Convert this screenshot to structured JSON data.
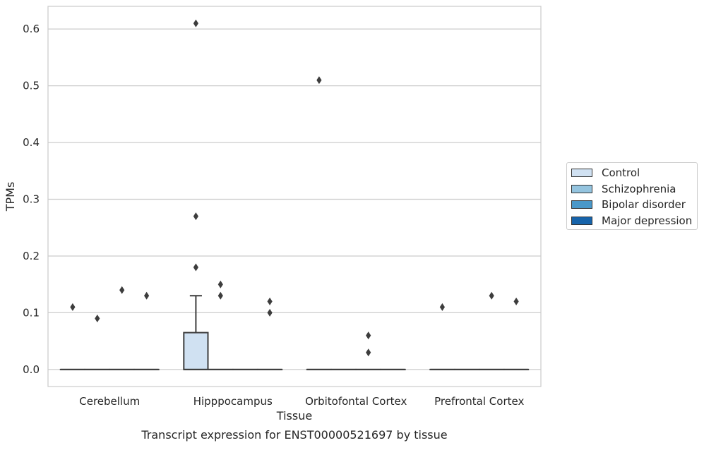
{
  "chart_data": {
    "type": "box",
    "title": "Transcript expression for ENST00000521697 by tissue",
    "xlabel": "Tissue",
    "ylabel": "TPMs",
    "ylim": [
      -0.03,
      0.64
    ],
    "yticks": [
      0.0,
      0.1,
      0.2,
      0.3,
      0.4,
      0.5,
      0.6
    ],
    "ytick_labels": [
      "0.0",
      "0.1",
      "0.2",
      "0.3",
      "0.4",
      "0.5",
      "0.6"
    ],
    "grid": "horizontal",
    "legend_position": "right",
    "categories": [
      "Cerebellum",
      "Hipppocampus",
      "Orbitofontal Cortex",
      "Prefrontal Cortex"
    ],
    "series": [
      {
        "name": "Control",
        "color": "#d0e1f2",
        "boxes": [
          {
            "q1": 0.0,
            "median": 0.0,
            "q3": 0.0,
            "whisker_low": 0.0,
            "whisker_high": 0.0,
            "outliers": [
              0.11
            ]
          },
          {
            "q1": 0.0,
            "median": 0.0,
            "q3": 0.065,
            "whisker_low": 0.0,
            "whisker_high": 0.13,
            "outliers": [
              0.61,
              0.27,
              0.18
            ]
          },
          {
            "q1": 0.0,
            "median": 0.0,
            "q3": 0.0,
            "whisker_low": 0.0,
            "whisker_high": 0.0,
            "outliers": [
              0.51
            ]
          },
          {
            "q1": 0.0,
            "median": 0.0,
            "q3": 0.0,
            "whisker_low": 0.0,
            "whisker_high": 0.0,
            "outliers": [
              0.11
            ]
          }
        ]
      },
      {
        "name": "Schizophrenia",
        "color": "#94c4df",
        "boxes": [
          {
            "q1": 0.0,
            "median": 0.0,
            "q3": 0.0,
            "whisker_low": 0.0,
            "whisker_high": 0.0,
            "outliers": [
              0.09
            ]
          },
          {
            "q1": 0.0,
            "median": 0.0,
            "q3": 0.0,
            "whisker_low": 0.0,
            "whisker_high": 0.0,
            "outliers": [
              0.15,
              0.13
            ]
          },
          {
            "q1": 0.0,
            "median": 0.0,
            "q3": 0.0,
            "whisker_low": 0.0,
            "whisker_high": 0.0,
            "outliers": []
          },
          {
            "q1": 0.0,
            "median": 0.0,
            "q3": 0.0,
            "whisker_low": 0.0,
            "whisker_high": 0.0,
            "outliers": []
          }
        ]
      },
      {
        "name": "Bipolar disorder",
        "color": "#4a98c9",
        "boxes": [
          {
            "q1": 0.0,
            "median": 0.0,
            "q3": 0.0,
            "whisker_low": 0.0,
            "whisker_high": 0.0,
            "outliers": [
              0.14
            ]
          },
          {
            "q1": 0.0,
            "median": 0.0,
            "q3": 0.0,
            "whisker_low": 0.0,
            "whisker_high": 0.0,
            "outliers": []
          },
          {
            "q1": 0.0,
            "median": 0.0,
            "q3": 0.0,
            "whisker_low": 0.0,
            "whisker_high": 0.0,
            "outliers": [
              0.06,
              0.03
            ]
          },
          {
            "q1": 0.0,
            "median": 0.0,
            "q3": 0.0,
            "whisker_low": 0.0,
            "whisker_high": 0.0,
            "outliers": [
              0.13
            ]
          }
        ]
      },
      {
        "name": "Major depression",
        "color": "#1764ab",
        "boxes": [
          {
            "q1": 0.0,
            "median": 0.0,
            "q3": 0.0,
            "whisker_low": 0.0,
            "whisker_high": 0.0,
            "outliers": [
              0.13
            ]
          },
          {
            "q1": 0.0,
            "median": 0.0,
            "q3": 0.0,
            "whisker_low": 0.0,
            "whisker_high": 0.0,
            "outliers": [
              0.12,
              0.1
            ]
          },
          {
            "q1": 0.0,
            "median": 0.0,
            "q3": 0.0,
            "whisker_low": 0.0,
            "whisker_high": 0.0,
            "outliers": []
          },
          {
            "q1": 0.0,
            "median": 0.0,
            "q3": 0.0,
            "whisker_low": 0.0,
            "whisker_high": 0.0,
            "outliers": [
              0.12
            ]
          }
        ]
      }
    ]
  }
}
